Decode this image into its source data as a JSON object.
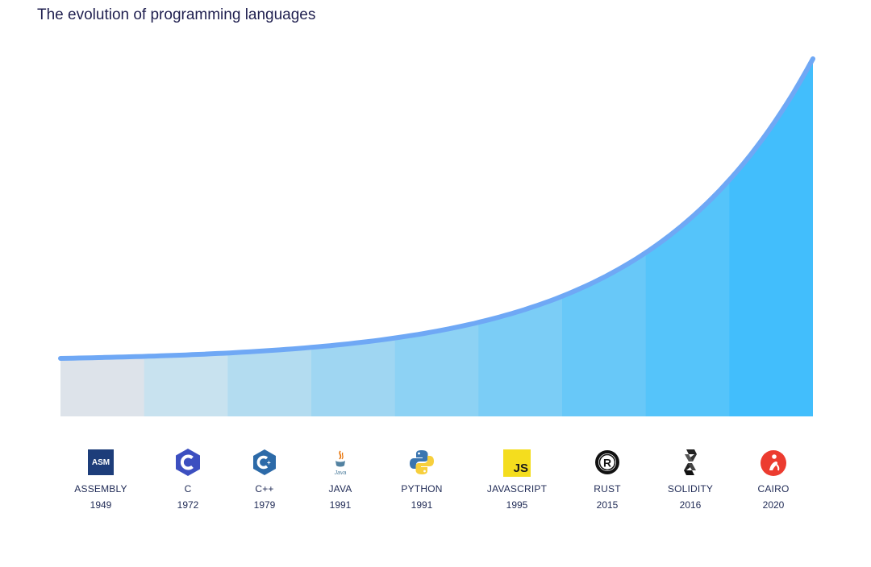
{
  "title": "The evolution of programming languages",
  "chart_data": {
    "type": "area",
    "title": "The evolution of programming languages",
    "categories": [
      "ASSEMBLY",
      "C",
      "C++",
      "JAVA",
      "PYTHON",
      "JAVASCRIPT",
      "RUST",
      "SOLIDITY",
      "CAIRO"
    ],
    "years": [
      "1949",
      "1972",
      "1979",
      "1991",
      "1991",
      "1995",
      "2015",
      "2016",
      "2020"
    ],
    "curve": {
      "shape": "exponential",
      "start_value": 1,
      "end_value": 100
    },
    "colors": {
      "line": "#6fa8f5",
      "segments": [
        "#dde3ea",
        "#c8e2ef",
        "#b3dcf0",
        "#9fd6f2",
        "#8dd2f4",
        "#7bcdf6",
        "#68c8f8",
        "#55c4fa",
        "#42befc"
      ]
    }
  },
  "languages": [
    {
      "name": "ASSEMBLY",
      "year": "1949",
      "icon": "assembly-icon",
      "logo_text": "ASM"
    },
    {
      "name": "C",
      "year": "1972",
      "icon": "c-icon"
    },
    {
      "name": "C++",
      "year": "1979",
      "icon": "cpp-icon"
    },
    {
      "name": "JAVA",
      "year": "1991",
      "icon": "java-icon",
      "logo_text": "Java"
    },
    {
      "name": "PYTHON",
      "year": "1991",
      "icon": "python-icon"
    },
    {
      "name": "JAVASCRIPT",
      "year": "1995",
      "icon": "javascript-icon",
      "logo_text": "JS"
    },
    {
      "name": "RUST",
      "year": "2015",
      "icon": "rust-icon"
    },
    {
      "name": "SOLIDITY",
      "year": "2016",
      "icon": "solidity-icon"
    },
    {
      "name": "CAIRO",
      "year": "2020",
      "icon": "cairo-icon"
    }
  ]
}
